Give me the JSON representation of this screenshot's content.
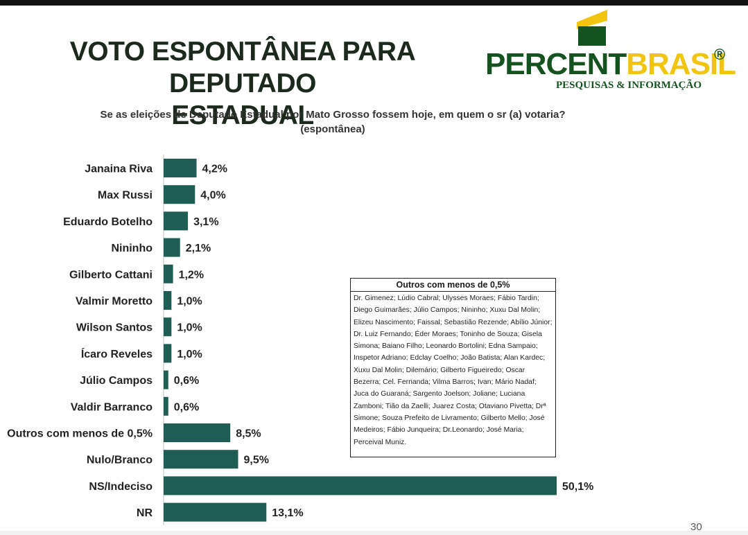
{
  "title_lines": [
    "VOTO ESPONTÂNEA PARA DEPUTADO",
    "ESTADUAL"
  ],
  "logo": {
    "brand_part1": "PERCENT",
    "brand_part2": "BRASIL",
    "registered": "®",
    "tagline": "PESQUISAS & INFORMAÇÃO",
    "colors": {
      "green": "#14531f",
      "yellow": "#f1c40f"
    }
  },
  "subtitle_lines": [
    "Se as eleições de Deputado Estadual por Mato Grosso  fossem hoje, em quem o sr (a) votaria?",
    "(espontânea)"
  ],
  "chart_data": {
    "type": "bar",
    "orientation": "horizontal",
    "categories": [
      "Janaina Riva",
      "Max Russi",
      "Eduardo Botelho",
      "Nininho",
      "Gilberto Cattani",
      "Valmir Moretto",
      "Wilson Santos",
      "Ícaro Reveles",
      "Júlio Campos",
      "Valdir Barranco",
      "Outros com menos de 0,5%",
      "Nulo/Branco",
      "NS/Indeciso",
      "NR"
    ],
    "values": [
      4.2,
      4.0,
      3.1,
      2.1,
      1.2,
      1.0,
      1.0,
      1.0,
      0.6,
      0.6,
      8.5,
      9.5,
      50.1,
      13.1
    ],
    "value_labels": [
      "4,2%",
      "4,0%",
      "3,1%",
      "2,1%",
      "1,2%",
      "1,0%",
      "1,0%",
      "1,0%",
      "0,6%",
      "0,6%",
      "8,5%",
      "9,5%",
      "50,1%",
      "13,1%"
    ],
    "bar_color": "#1f5e55",
    "axis_line": true,
    "grid": false,
    "legend": "none"
  },
  "others_box": {
    "title": "Outros com menos de 0,5%",
    "text": "Dr. Gimenez; Lúdio Cabral; Ulysses Moraes; Fábio Tardin; Diego Guimarães; Júlio Campos; Nininho; Xuxu Dal Molin; Elizeu Nascimento; Faissal; Sebastião Rezende; Abílio Júnior; Dr. Luiz Fernando; Éder Moraes; Toninho de Souza; Gisela Simona; Baiano Filho; Leonardo Bortolini; Edna Sampaio; Inspetor Adriano; Edclay Coelho; João Batista; Alan Kardec; Xuxu Dal Molin; Dilemário; Gilberto Figueiredo; Oscar Bezerra; Cel. Fernanda; Vilma Barros; Ivan; Mário Nadaf; Juca do Guaraná; Sargento Joelson; Joliane; Luciana Zamboni; Tião da Zaelli; Juarez Costa; Otaviano Pivetta; Drª Simone; Souza Prefeito de Livramento; Gilberto Mello; José Medeiros; Fábio Junqueira; Dr.Leonardo; José Maria; Perceival Muniz."
  },
  "page_number": "30"
}
